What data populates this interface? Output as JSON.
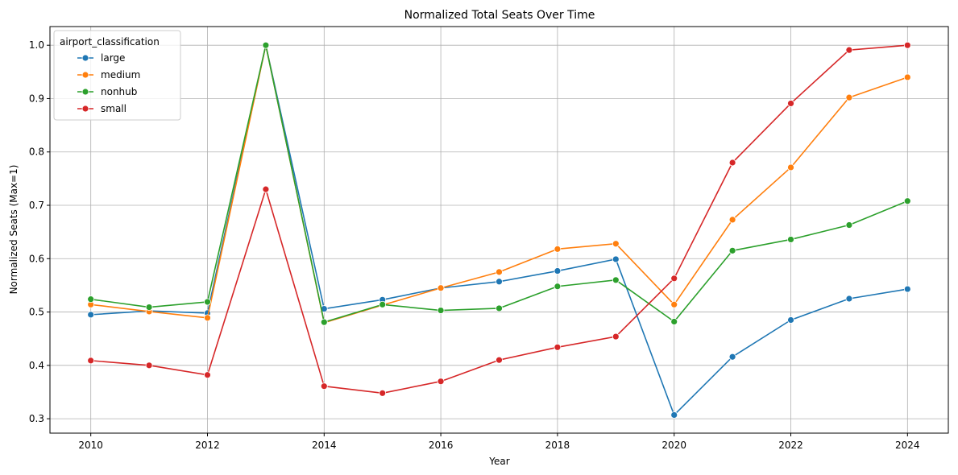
{
  "chart_data": {
    "type": "line",
    "title": "Normalized Total Seats Over Time",
    "xlabel": "Year",
    "ylabel": "Normalized Seats (Max=1)",
    "x": [
      2010,
      2011,
      2012,
      2013,
      2014,
      2015,
      2016,
      2017,
      2018,
      2019,
      2020,
      2021,
      2022,
      2023,
      2024
    ],
    "x_ticks": [
      2010,
      2012,
      2014,
      2016,
      2018,
      2020,
      2022,
      2024
    ],
    "y_ticks": [
      "0.3",
      "0.4",
      "0.5",
      "0.6",
      "0.7",
      "0.8",
      "0.9",
      "1.0"
    ],
    "xlim": [
      2009.3,
      2024.7
    ],
    "ylim": [
      0.273,
      1.035
    ],
    "grid": true,
    "legend": {
      "title": "airport_classification",
      "placement": "top-left"
    },
    "series": [
      {
        "name": "large",
        "color": "#1f77b4",
        "values": [
          0.495,
          0.502,
          0.498,
          1.0,
          0.506,
          0.523,
          0.545,
          0.557,
          0.577,
          0.599,
          0.307,
          0.416,
          0.485,
          0.525,
          0.543
        ]
      },
      {
        "name": "medium",
        "color": "#ff7f0e",
        "values": [
          0.514,
          0.501,
          0.489,
          1.0,
          0.48,
          0.513,
          0.545,
          0.575,
          0.618,
          0.628,
          0.514,
          0.673,
          0.771,
          0.902,
          0.94
        ]
      },
      {
        "name": "nonhub",
        "color": "#2ca02c",
        "values": [
          0.524,
          0.509,
          0.519,
          1.0,
          0.481,
          0.514,
          0.503,
          0.507,
          0.548,
          0.56,
          0.482,
          0.615,
          0.636,
          0.663,
          0.708
        ]
      },
      {
        "name": "small",
        "color": "#d62728",
        "values": [
          0.409,
          0.4,
          0.382,
          0.73,
          0.361,
          0.348,
          0.37,
          0.41,
          0.434,
          0.454,
          0.563,
          0.78,
          0.891,
          0.991,
          1.0
        ]
      }
    ]
  }
}
